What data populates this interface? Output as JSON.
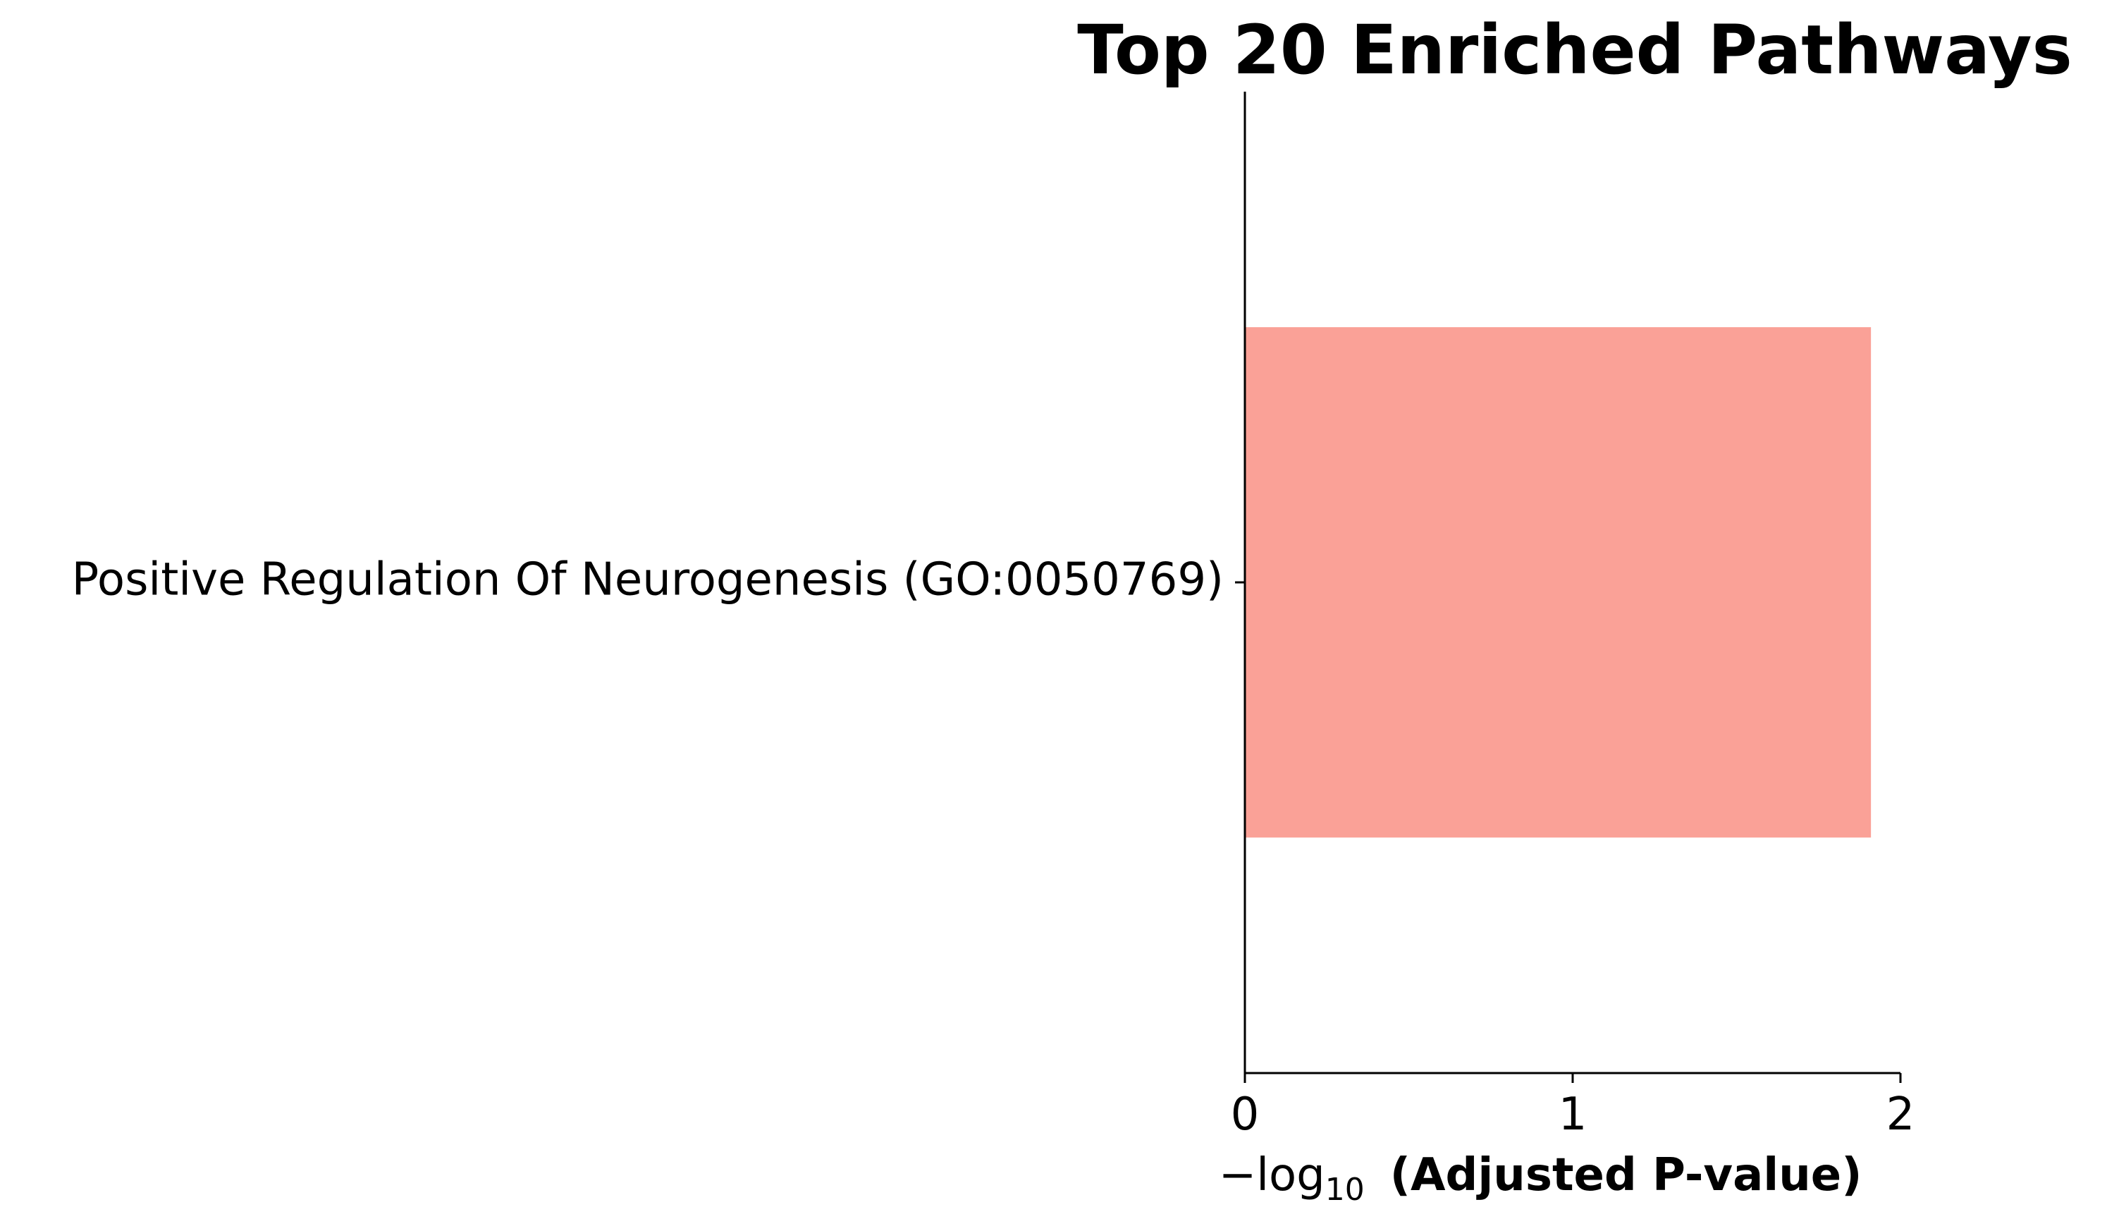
{
  "chart_data": {
    "type": "bar",
    "orientation": "horizontal",
    "title": "Top 20 Enriched Pathways",
    "categories": [
      "Positive Regulation Of Neurogenesis (GO:0050769)"
    ],
    "values": [
      1.91
    ],
    "xlabel_prefix": "−log",
    "xlabel_subscript": "10",
    "xlabel_main": "(Adjusted P-value)",
    "xlim": [
      0,
      2
    ],
    "xticks": [
      0,
      1,
      2
    ],
    "xtick_labels": [
      "0",
      "1",
      "2"
    ],
    "grid": false,
    "legend": "none",
    "bar_color": "#FAA197"
  }
}
